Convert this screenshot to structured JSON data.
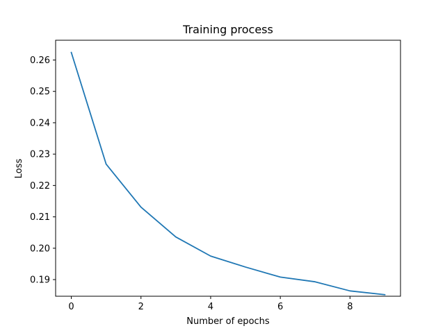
{
  "chart_data": {
    "type": "line",
    "title": "Training process",
    "xlabel": "Number of epochs",
    "ylabel": "Loss",
    "xlim": [
      -0.45,
      9.45
    ],
    "ylim": [
      0.1847,
      0.2663
    ],
    "xticks": [
      0,
      2,
      4,
      6,
      8
    ],
    "yticks": [
      0.19,
      0.2,
      0.21,
      0.22,
      0.23,
      0.24,
      0.25,
      0.26
    ],
    "xtick_labels": [
      "0",
      "2",
      "4",
      "6",
      "8"
    ],
    "ytick_labels": [
      "0.19",
      "0.20",
      "0.21",
      "0.22",
      "0.23",
      "0.24",
      "0.25",
      "0.26"
    ],
    "grid": false,
    "series": [
      {
        "color": "#1f77b4",
        "x": [
          0,
          1,
          2,
          3,
          4,
          5,
          6,
          7,
          8,
          9
        ],
        "y": [
          0.2624,
          0.2268,
          0.2131,
          0.2036,
          0.1975,
          0.194,
          0.1908,
          0.1893,
          0.1864,
          0.1852
        ]
      }
    ]
  }
}
